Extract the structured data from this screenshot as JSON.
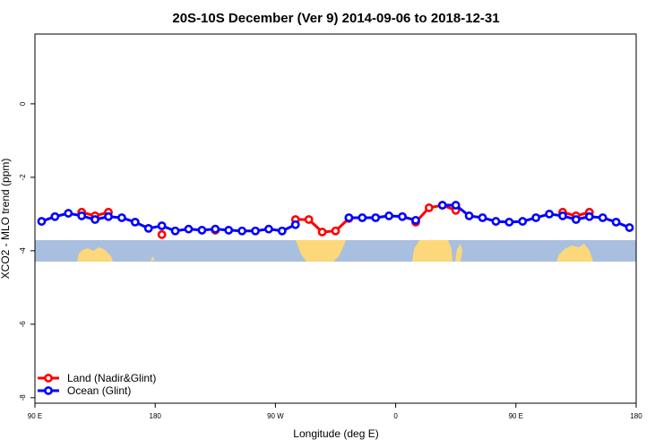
{
  "chart_data": {
    "type": "line",
    "title": "20S-10S December (Ver 9)   2014-09-06 to 2018-12-31",
    "xlabel": "Longitude (deg E)",
    "ylabel": "XCO2 - MLO trend (ppm)",
    "x": [
      95,
      105,
      115,
      125,
      135,
      145,
      155,
      165,
      175,
      185,
      195,
      205,
      215,
      225,
      235,
      245,
      255,
      265,
      275,
      285,
      295,
      305,
      315,
      325,
      335,
      345,
      355,
      365,
      375,
      385,
      395,
      405,
      415,
      425,
      435,
      445,
      455,
      465,
      475,
      485,
      495,
      505,
      515,
      525,
      535
    ],
    "series": [
      {
        "name": "Land (Nadir&Glint)",
        "color": "#ff0000",
        "values": [
          null,
          null,
          null,
          -2.95,
          -3.05,
          -2.95,
          null,
          null,
          null,
          -3.56,
          null,
          null,
          null,
          -3.44,
          null,
          null,
          null,
          null,
          null,
          -3.15,
          -3.15,
          -3.49,
          -3.46,
          -3.12,
          null,
          null,
          null,
          null,
          -3.22,
          -2.83,
          -2.76,
          -2.9,
          null,
          null,
          null,
          null,
          null,
          null,
          null,
          -2.95,
          -3.05,
          -2.95,
          null,
          null,
          null
        ]
      },
      {
        "name": "Ocean (Glint)",
        "color": "#0000ff",
        "values": [
          -3.2,
          -3.07,
          -2.98,
          -3.05,
          -3.15,
          -3.07,
          -3.1,
          -3.22,
          -3.39,
          -3.32,
          -3.46,
          -3.41,
          -3.44,
          -3.41,
          -3.44,
          -3.46,
          -3.46,
          -3.41,
          -3.46,
          -3.29,
          null,
          null,
          null,
          -3.1,
          -3.1,
          -3.1,
          -3.05,
          -3.07,
          -3.17,
          null,
          -2.76,
          -2.76,
          -3.05,
          -3.1,
          -3.2,
          -3.22,
          -3.2,
          -3.1,
          -3.0,
          -3.05,
          -3.15,
          -3.07,
          -3.1,
          -3.22,
          -3.37
        ]
      }
    ],
    "xlim": [
      90,
      540
    ],
    "xticks": [
      {
        "value": 90,
        "label": "90 E"
      },
      180,
      {
        "value": 270,
        "label": "90 W"
      },
      {
        "value": 360,
        "label": "0"
      },
      {
        "value": 450,
        "label": "90 E"
      },
      {
        "value": 540,
        "label": "180"
      }
    ],
    "ylim": [
      -8.15,
      1.9
    ],
    "yticks": [
      0,
      -2,
      -4,
      -6,
      -8
    ],
    "legend": "lower left"
  }
}
